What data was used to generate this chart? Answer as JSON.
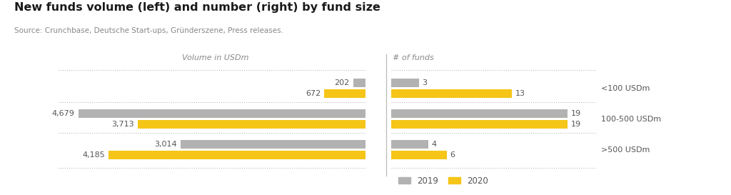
{
  "title": "New funds volume (left) and number (right) by fund size",
  "source": "Source: Crunchbase, Deutsche Start-ups, Gründerszene, Press releases.",
  "categories": [
    "<100 USDm",
    "100-500 USDm",
    ">500 USDm"
  ],
  "volume_2019": [
    202,
    4679,
    3014
  ],
  "volume_2020": [
    672,
    3713,
    4185
  ],
  "count_2019": [
    3,
    19,
    4
  ],
  "count_2020": [
    13,
    19,
    6
  ],
  "color_2019": "#b2b2b2",
  "color_2020": "#f5c518",
  "vol_label": "Volume in USDm",
  "count_label": "# of funds",
  "legend_2019": "2019",
  "legend_2020": "2020",
  "background_color": "#ffffff",
  "bar_height": 0.28,
  "bar_gap": 0.06,
  "max_vol": 5000,
  "max_cnt": 22,
  "separator_color": "#aaaaaa",
  "separator_lw": 0.7,
  "label_color": "#555555",
  "label_fontsize": 8,
  "header_fontsize": 8,
  "title_fontsize": 11.5,
  "source_fontsize": 7.5,
  "cat_fontsize": 8
}
